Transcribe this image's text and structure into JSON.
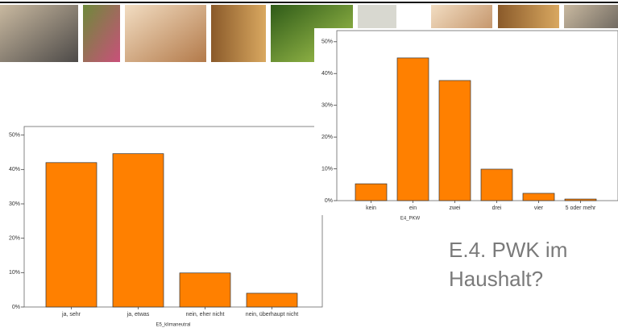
{
  "chart_data": [
    {
      "type": "bar",
      "categories": [
        "ja, sehr",
        "ja, etwas",
        "nein, eher nicht",
        "nein, überhaupt nicht"
      ],
      "values": [
        42.0,
        44.6,
        9.9,
        4.0
      ],
      "color": "#ff8000",
      "x_label": "E5_klimaneutral",
      "ylim": [
        0,
        52.5
      ],
      "yticks": [
        {
          "value": 0,
          "label": "0%"
        },
        {
          "value": 10,
          "label": "10%"
        },
        {
          "value": 20,
          "label": "20%"
        },
        {
          "value": 30,
          "label": "30%"
        },
        {
          "value": 40,
          "label": "40%"
        },
        {
          "value": 50,
          "label": "50%"
        }
      ]
    },
    {
      "type": "bar",
      "categories": [
        "kein",
        "ein",
        "zwei",
        "drei",
        "vier",
        "5 oder mehr"
      ],
      "values": [
        5.3,
        44.9,
        37.8,
        9.9,
        2.3,
        0.5
      ],
      "color": "#ff8000",
      "x_label": "E4_PKW",
      "ylim": [
        0,
        53.5
      ],
      "yticks": [
        {
          "value": 0,
          "label": "0%"
        },
        {
          "value": 10,
          "label": "10%"
        },
        {
          "value": 20,
          "label": "20%"
        },
        {
          "value": 30,
          "label": "30%"
        },
        {
          "value": 40,
          "label": "40%"
        },
        {
          "value": 50,
          "label": "50%"
        }
      ]
    }
  ],
  "caption": "E.4. PWK im Haushalt?"
}
